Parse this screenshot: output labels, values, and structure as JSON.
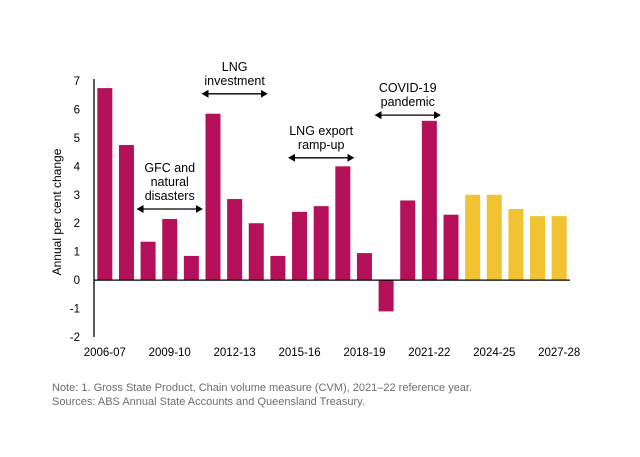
{
  "chart_data": {
    "type": "bar",
    "title": "",
    "ylabel": "Annual per cent change",
    "xlabel": "",
    "ylim": [
      -2,
      7
    ],
    "yticks": [
      -2,
      -1,
      0,
      1,
      2,
      3,
      4,
      5,
      6,
      7
    ],
    "grid": false,
    "legend": "none",
    "categories": [
      "2006-07",
      "2007-08",
      "2008-09",
      "2009-10",
      "2010-11",
      "2011-12",
      "2012-13",
      "2013-14",
      "2014-15",
      "2015-16",
      "2016-17",
      "2017-18",
      "2018-19",
      "2019-20",
      "2020-21",
      "2021-22",
      "2022-23",
      "2023-24",
      "2024-25",
      "2025-26",
      "2026-27",
      "2027-28"
    ],
    "x_tick_labels": [
      "2006-07",
      "",
      "",
      "2009-10",
      "",
      "",
      "2012-13",
      "",
      "",
      "2015-16",
      "",
      "",
      "2018-19",
      "",
      "",
      "2021-22",
      "",
      "",
      "2024-25",
      "",
      "",
      "2027-28"
    ],
    "values": [
      6.75,
      4.75,
      1.35,
      2.15,
      0.85,
      5.85,
      2.85,
      2.0,
      0.85,
      2.4,
      2.6,
      4.0,
      0.95,
      -1.1,
      2.8,
      5.6,
      2.3,
      3.0,
      3.0,
      2.5,
      2.25,
      2.25
    ],
    "bar_kind": [
      "actual",
      "actual",
      "actual",
      "actual",
      "actual",
      "actual",
      "actual",
      "actual",
      "actual",
      "actual",
      "actual",
      "actual",
      "actual",
      "actual",
      "actual",
      "actual",
      "actual",
      "forecast",
      "forecast",
      "forecast",
      "forecast",
      "forecast"
    ],
    "colors": {
      "actual": "#b5115a",
      "forecast": "#f1c232",
      "axis": "#000000"
    },
    "annotations": [
      {
        "lines": [
          "GFC and",
          "natural",
          "disasters"
        ],
        "span": [
          "2008-09",
          "2010-11"
        ]
      },
      {
        "lines": [
          "LNG",
          "investment"
        ],
        "span": [
          "2011-12",
          "2013-14"
        ]
      },
      {
        "lines": [
          "LNG export",
          "ramp-up"
        ],
        "span": [
          "2015-16",
          "2017-18"
        ]
      },
      {
        "lines": [
          "COVID-19",
          "pandemic"
        ],
        "span": [
          "2019-20",
          "2021-22"
        ]
      }
    ]
  },
  "notes": {
    "note": "Note: 1. Gross State Product, Chain volume measure (CVM), 2021–22 reference year.",
    "sources": "Sources: ABS Annual State Accounts and Queensland Treasury."
  }
}
